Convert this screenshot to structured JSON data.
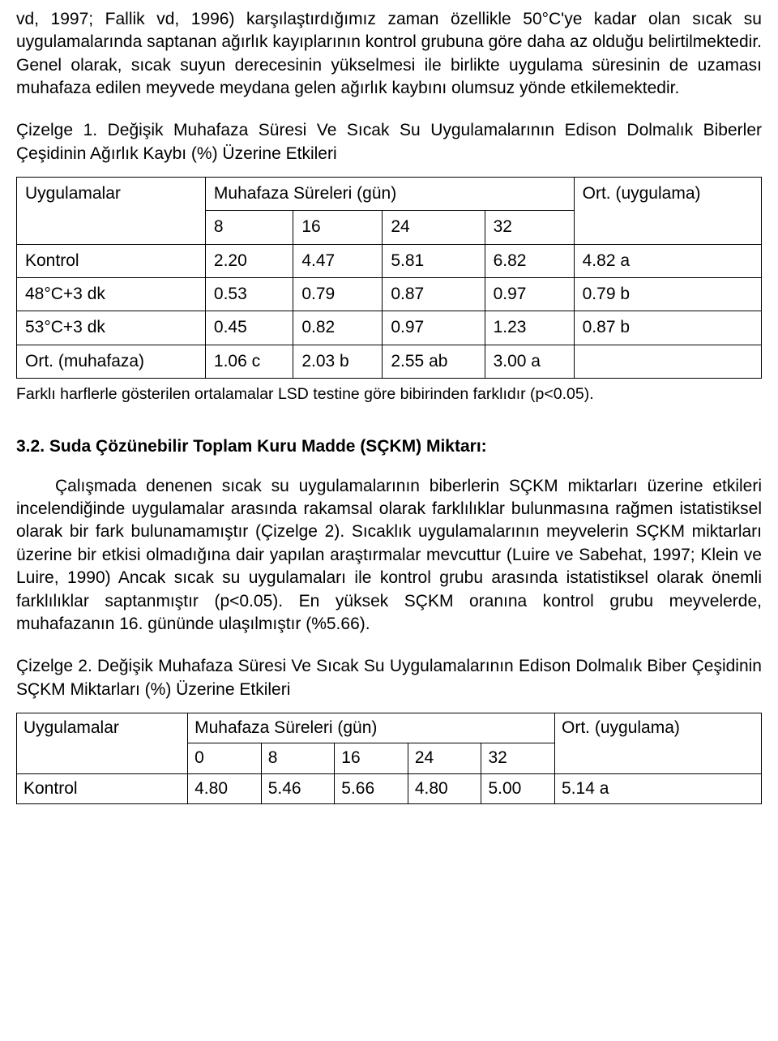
{
  "para1": "vd, 1997; Fallik vd, 1996) karşılaştırdığımız zaman özellikle 50°C'ye kadar olan sıcak su uygulamalarında saptanan ağırlık kayıplarının kontrol grubuna göre daha az olduğu belirtilmektedir. Genel olarak, sıcak suyun derecesinin yükselmesi ile birlikte uygulama süresinin de uzaması muhafaza edilen meyvede meydana gelen ağırlık kaybını olumsuz yönde etkilemektedir.",
  "caption1": "Çizelge 1. Değişik Muhafaza Süresi Ve Sıcak Su Uygulamalarının Edison Dolmalık Biberler Çeşidinin Ağırlık Kaybı (%) Üzerine Etkileri",
  "table1": {
    "header_row1_col0": "Uygulamalar",
    "header_row1_col1": "Muhafaza Süreleri (gün)",
    "header_row1_col2": "Ort. (uygulama)",
    "header_sub": [
      "8",
      "16",
      "24",
      "32"
    ],
    "rows": [
      {
        "label": "Kontrol",
        "c1": "2.20",
        "c2": "4.47",
        "c3": "5.81",
        "c4": "6.82",
        "ort": "4.82 a"
      },
      {
        "label": "48°C+3 dk",
        "c1": "0.53",
        "c2": "0.79",
        "c3": "0.87",
        "c4": "0.97",
        "ort": "0.79 b"
      },
      {
        "label": "53°C+3 dk",
        "c1": "0.45",
        "c2": "0.82",
        "c3": "0.97",
        "c4": "1.23",
        "ort": "0.87 b"
      },
      {
        "label": "Ort. (muhafaza)",
        "c1": "1.06 c",
        "c2": "2.03 b",
        "c3": "2.55 ab",
        "c4": "3.00 a",
        "ort": ""
      }
    ]
  },
  "footnote1": "Farklı harflerle gösterilen ortalamalar LSD testine göre bibirinden farklıdır (p<0.05).",
  "section_heading": "3.2. Suda Çözünebilir Toplam Kuru Madde (SÇKM) Miktarı:",
  "para2": "Çalışmada denenen sıcak su uygulamalarının biberlerin SÇKM miktarları üzerine etkileri incelendiğinde uygulamalar arasında rakamsal olarak farklılıklar bulunmasına rağmen istatistiksel olarak bir fark bulunamamıştır (Çizelge 2). Sıcaklık uygulamalarının meyvelerin SÇKM miktarları üzerine bir etkisi olmadığına dair yapılan araştırmalar mevcuttur (Luire ve Sabehat, 1997; Klein ve Luire, 1990) Ancak sıcak su uygulamaları ile kontrol grubu arasında istatistiksel olarak önemli farklılıklar saptanmıştır (p<0.05). En yüksek SÇKM oranına kontrol grubu meyvelerde, muhafazanın 16. gününde ulaşılmıştır (%5.66).",
  "caption2": "Çizelge 2. Değişik Muhafaza Süresi Ve Sıcak Su Uygulamalarının Edison Dolmalık Biber Çeşidinin SÇKM Miktarları (%) Üzerine Etkileri",
  "table2": {
    "header_row1_col0": "Uygulamalar",
    "header_row1_col1": "Muhafaza Süreleri (gün)",
    "header_row1_col2": "Ort. (uygulama)",
    "header_sub": [
      "0",
      "8",
      "16",
      "24",
      "32"
    ],
    "rows": [
      {
        "label": "Kontrol",
        "c1": "4.80",
        "c2": "5.46",
        "c3": "5.66",
        "c4": "4.80",
        "c5": "5.00",
        "ort": "5.14 a"
      }
    ]
  }
}
